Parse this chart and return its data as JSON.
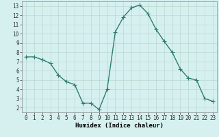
{
  "x": [
    0,
    1,
    2,
    3,
    4,
    5,
    6,
    7,
    8,
    9,
    10,
    11,
    12,
    13,
    14,
    15,
    16,
    17,
    18,
    19,
    20,
    21,
    22,
    23
  ],
  "y": [
    7.5,
    7.5,
    7.2,
    6.8,
    5.5,
    4.8,
    4.5,
    2.5,
    2.5,
    1.8,
    4.0,
    10.2,
    11.8,
    12.8,
    13.1,
    12.2,
    10.5,
    9.2,
    8.0,
    6.2,
    5.2,
    5.0,
    3.0,
    2.7
  ],
  "line_color": "#2e7d6e",
  "marker": "+",
  "markersize": 4,
  "linewidth": 1.0,
  "bg_color": "#d6f0f0",
  "grid_color": "#b8d8d0",
  "xlabel": "Humidex (Indice chaleur)",
  "xlim": [
    -0.5,
    23.5
  ],
  "ylim": [
    1.5,
    13.5
  ],
  "yticks": [
    2,
    3,
    4,
    5,
    6,
    7,
    8,
    9,
    10,
    11,
    12,
    13
  ],
  "xticks": [
    0,
    1,
    2,
    3,
    4,
    5,
    6,
    7,
    8,
    9,
    10,
    11,
    12,
    13,
    14,
    15,
    16,
    17,
    18,
    19,
    20,
    21,
    22,
    23
  ],
  "tick_fontsize": 5.5,
  "xlabel_fontsize": 6.5
}
